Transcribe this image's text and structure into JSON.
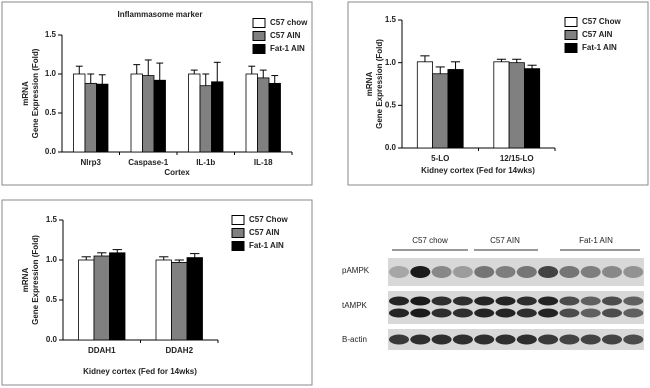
{
  "chart_data": [
    {
      "type": "bar",
      "title": "Inflammasome marker",
      "y_label": [
        "mRNA",
        "Gene Expression (Fold)"
      ],
      "x_label": "Cortex",
      "categories": [
        "Nlrp3",
        "Caspase-1",
        "IL-1b",
        "IL-18"
      ],
      "series": [
        {
          "name": "C57 chow",
          "color": "#ffffff",
          "values": [
            1.0,
            1.0,
            1.0,
            1.0
          ],
          "errors": [
            0.1,
            0.12,
            0.05,
            0.1
          ]
        },
        {
          "name": "C57 AIN",
          "color": "#808080",
          "values": [
            0.88,
            0.98,
            0.85,
            0.95
          ],
          "errors": [
            0.12,
            0.2,
            0.15,
            0.1
          ]
        },
        {
          "name": "Fat-1 AIN",
          "color": "#000000",
          "values": [
            0.87,
            0.92,
            0.9,
            0.88
          ],
          "errors": [
            0.12,
            0.22,
            0.25,
            0.1
          ]
        }
      ],
      "ylim": [
        0,
        1.5
      ],
      "yticks": [
        {
          "value": 0,
          "label": "0.0"
        },
        0.5,
        {
          "value": 1,
          "label": "1.0"
        },
        1.5
      ]
    },
    {
      "type": "bar",
      "y_label": [
        "mRNA",
        "Gene Expression (Fold)"
      ],
      "x_label": "Kidney cortex (Fed for 14wks)",
      "categories": [
        "5-LO",
        "12/15-LO"
      ],
      "series": [
        {
          "name": "C57 Chow",
          "color": "#ffffff",
          "values": [
            1.01,
            1.01
          ],
          "errors": [
            0.07,
            0.03
          ]
        },
        {
          "name": "C57 AIN",
          "color": "#808080",
          "values": [
            0.87,
            1.0
          ],
          "errors": [
            0.08,
            0.04
          ]
        },
        {
          "name": "Fat-1 AIN",
          "color": "#000000",
          "values": [
            0.92,
            0.93
          ],
          "errors": [
            0.09,
            0.04
          ]
        }
      ],
      "ylim": [
        0,
        1.5
      ],
      "yticks": [
        {
          "value": 0,
          "label": "0.0"
        },
        0.5,
        {
          "value": 1,
          "label": "1.0"
        },
        1.5
      ]
    },
    {
      "type": "bar",
      "y_label": [
        "mRNA",
        "Gene Expression (Fold)"
      ],
      "x_label": "Kidney cortex (Fed for 14wks)",
      "categories": [
        "DDAH1",
        "DDAH2"
      ],
      "series": [
        {
          "name": "C57 Chow",
          "color": "#ffffff",
          "values": [
            1.0,
            1.0
          ],
          "errors": [
            0.04,
            0.04
          ]
        },
        {
          "name": "C57 AIN",
          "color": "#808080",
          "values": [
            1.05,
            0.97
          ],
          "errors": [
            0.04,
            0.03
          ]
        },
        {
          "name": "Fat-1 AIN",
          "color": "#000000",
          "values": [
            1.09,
            1.03
          ],
          "errors": [
            0.04,
            0.05
          ]
        }
      ],
      "ylim": [
        0,
        1.5
      ],
      "yticks": [
        {
          "value": 0,
          "label": "0.0"
        },
        0.5,
        {
          "value": 1,
          "label": "1.0"
        },
        1.5
      ]
    }
  ],
  "blot": {
    "groups": [
      "C57 chow",
      "C57 AIN",
      "Fat-1 AIN"
    ],
    "rows": [
      "pAMPK",
      "tAMPK",
      "B-actin"
    ]
  }
}
